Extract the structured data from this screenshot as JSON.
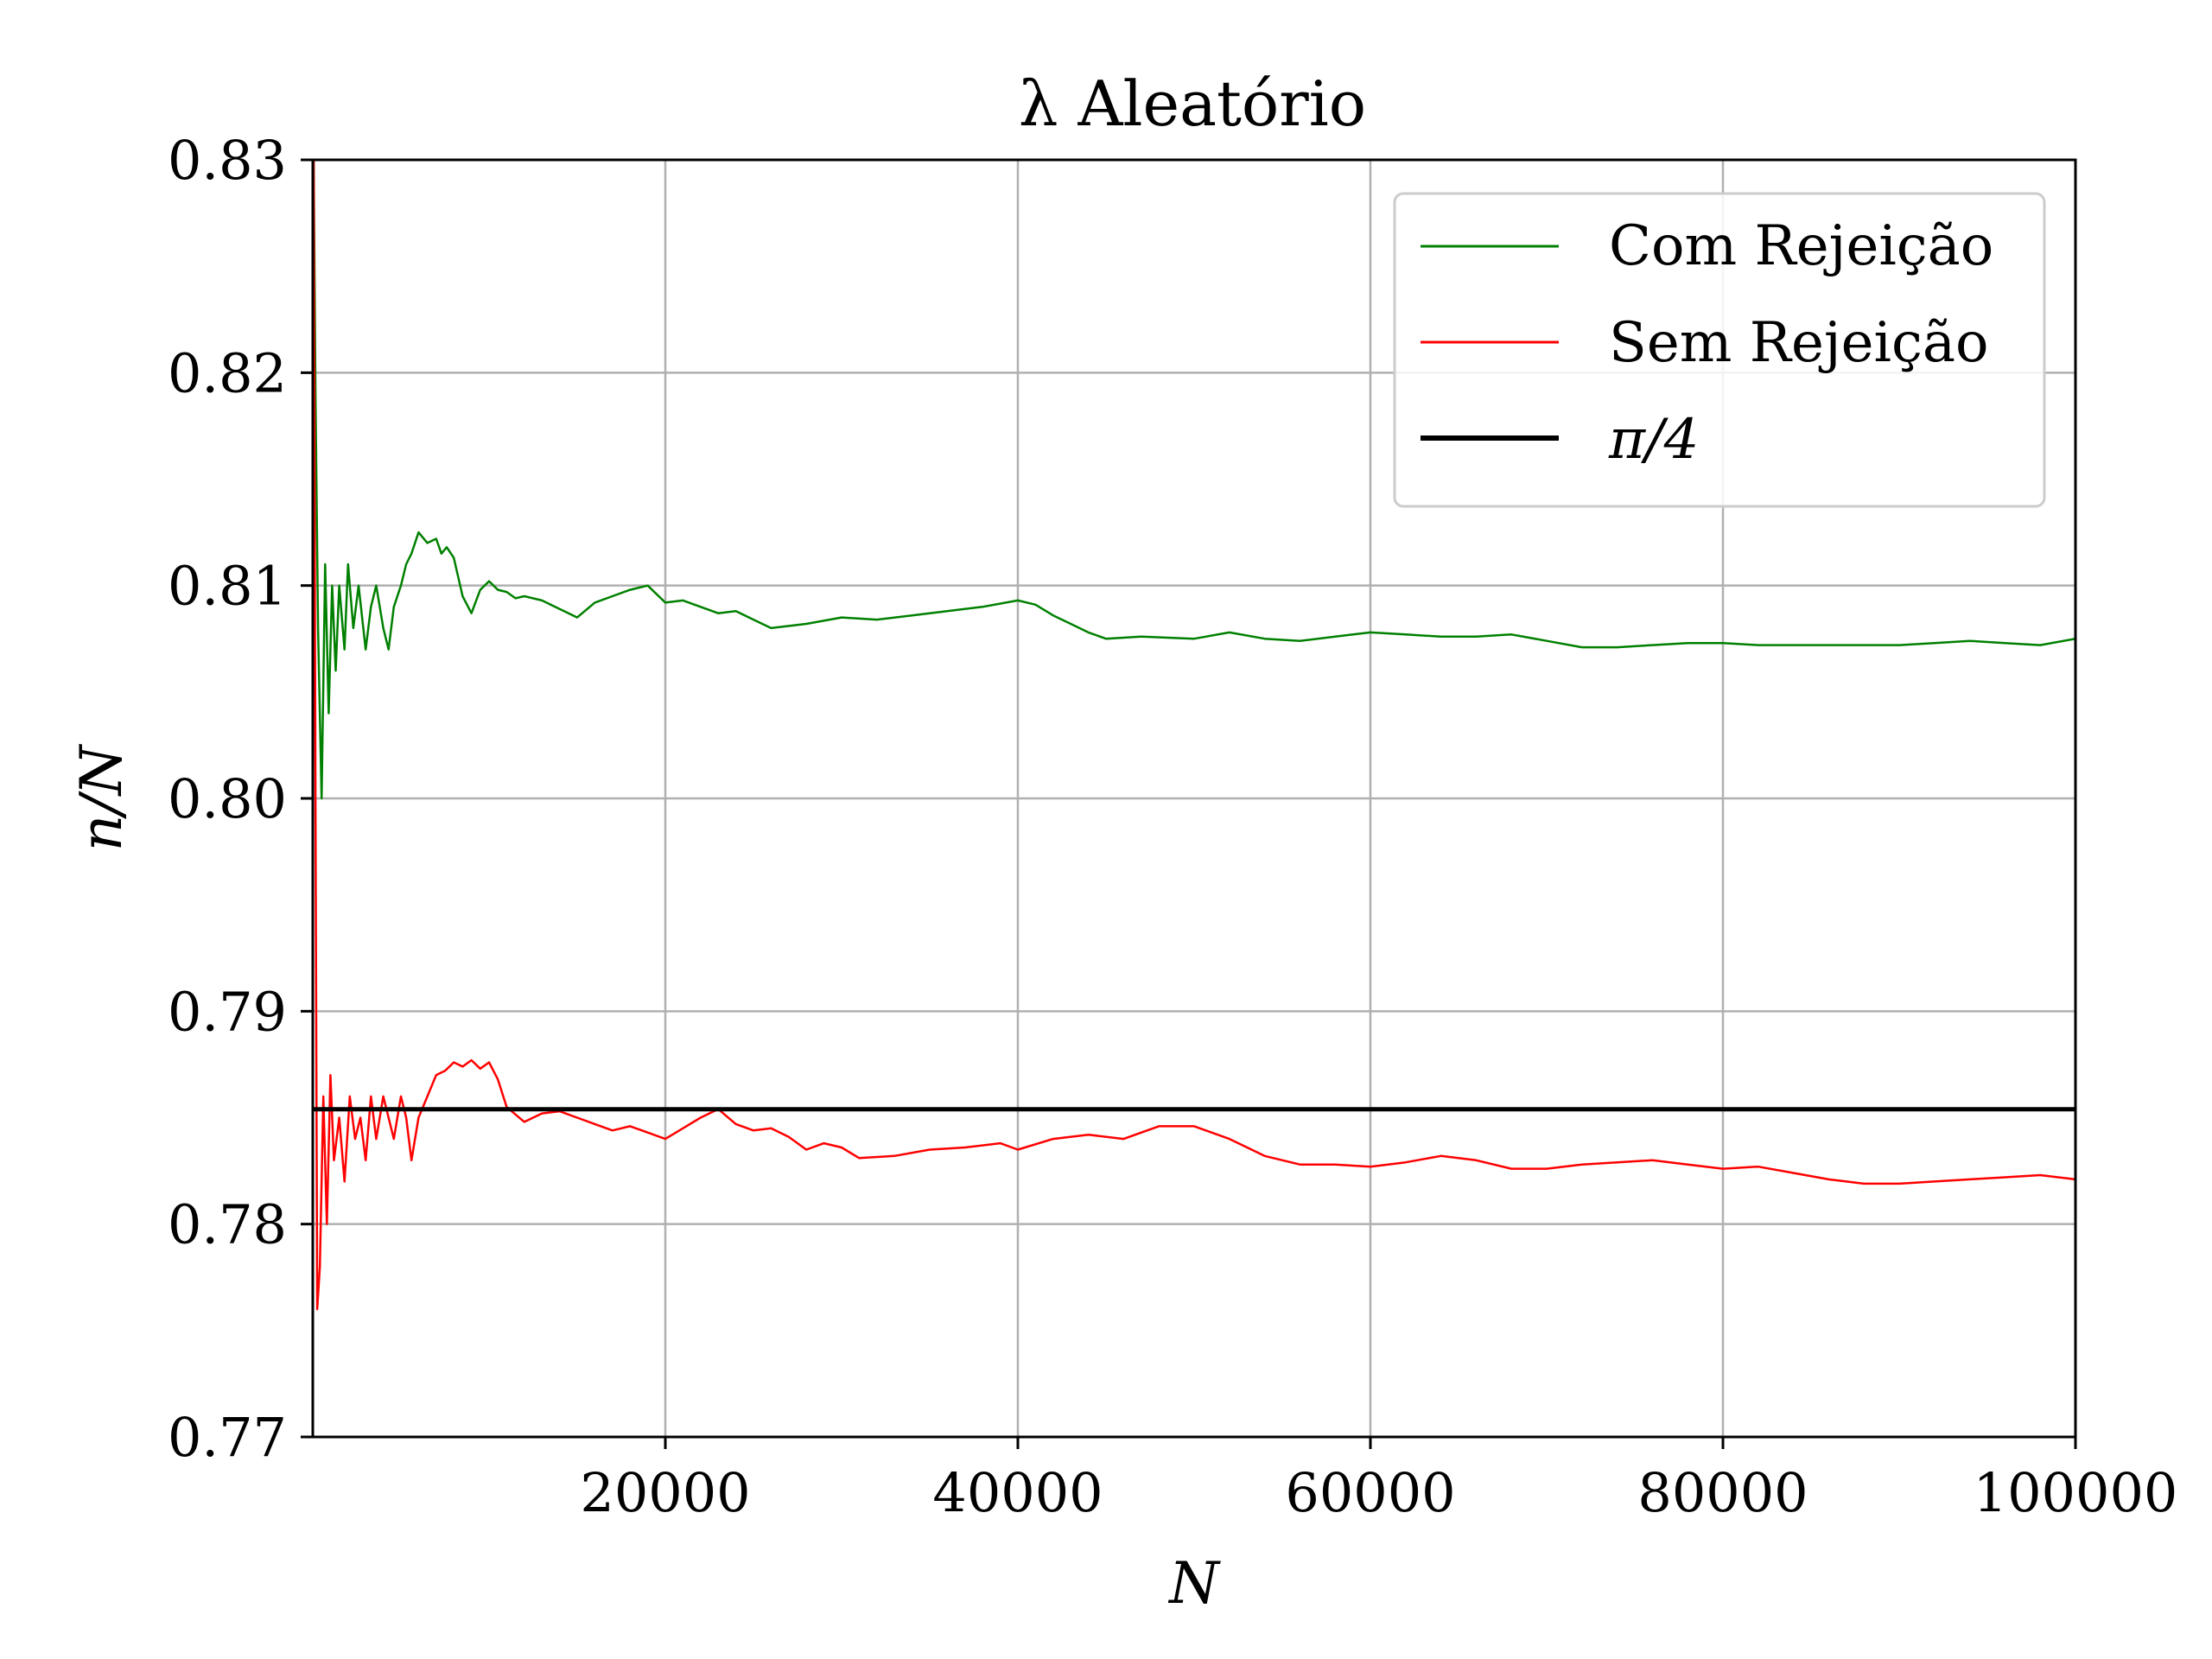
{
  "chart_data": {
    "type": "line",
    "title": "λ Aleatório",
    "xlabel": "N",
    "ylabel": "n/N",
    "xlim": [
      0,
      100000
    ],
    "ylim": [
      0.77,
      0.83
    ],
    "xticks": [
      20000,
      40000,
      60000,
      80000,
      100000
    ],
    "xtick_labels": [
      "20000",
      "40000",
      "60000",
      "80000",
      "100000"
    ],
    "yticks": [
      0.77,
      0.78,
      0.79,
      0.8,
      0.81,
      0.82,
      0.83
    ],
    "ytick_labels": [
      "0.77",
      "0.78",
      "0.79",
      "0.80",
      "0.81",
      "0.82",
      "0.83"
    ],
    "grid": true,
    "legend_position": "top-right",
    "series": [
      {
        "name": "Com Rejeição",
        "color": "#008000",
        "x": [
          50,
          150,
          300,
          500,
          700,
          900,
          1100,
          1300,
          1500,
          1800,
          2000,
          2300,
          2600,
          3000,
          3300,
          3600,
          4000,
          4300,
          4600,
          5000,
          5300,
          5600,
          6000,
          6500,
          7000,
          7300,
          7600,
          8000,
          8500,
          9000,
          9500,
          10000,
          10500,
          11000,
          11500,
          12000,
          13000,
          14000,
          15000,
          16000,
          17000,
          18000,
          19000,
          20000,
          21000,
          22000,
          23000,
          24000,
          25000,
          26000,
          28000,
          30000,
          32000,
          34000,
          36000,
          38000,
          40000,
          41000,
          42000,
          43000,
          44000,
          45000,
          47000,
          50000,
          52000,
          54000,
          56000,
          58000,
          60000,
          62000,
          64000,
          66000,
          68000,
          70000,
          72000,
          74000,
          76000,
          78000,
          80000,
          82000,
          84000,
          86000,
          88000,
          90000,
          92000,
          94000,
          96000,
          98000,
          100000
        ],
        "values": [
          0.83,
          0.819,
          0.808,
          0.8,
          0.811,
          0.804,
          0.81,
          0.806,
          0.81,
          0.807,
          0.811,
          0.808,
          0.81,
          0.807,
          0.809,
          0.81,
          0.808,
          0.807,
          0.809,
          0.81,
          0.811,
          0.8115,
          0.8125,
          0.812,
          0.8122,
          0.8115,
          0.8118,
          0.8113,
          0.8095,
          0.8087,
          0.8098,
          0.8102,
          0.8098,
          0.8097,
          0.8094,
          0.8095,
          0.8093,
          0.8089,
          0.8085,
          0.8092,
          0.8095,
          0.8098,
          0.81,
          0.8092,
          0.8093,
          0.809,
          0.8087,
          0.8088,
          0.8084,
          0.808,
          0.8082,
          0.8085,
          0.8084,
          0.8086,
          0.8088,
          0.809,
          0.8093,
          0.8091,
          0.8086,
          0.8082,
          0.8078,
          0.8075,
          0.8076,
          0.8075,
          0.8078,
          0.8075,
          0.8074,
          0.8076,
          0.8078,
          0.8077,
          0.8076,
          0.8076,
          0.8077,
          0.8074,
          0.8071,
          0.8071,
          0.8072,
          0.8073,
          0.8073,
          0.8072,
          0.8072,
          0.8072,
          0.8072,
          0.8072,
          0.8073,
          0.8074,
          0.8073,
          0.8072,
          0.8075
        ]
      },
      {
        "name": "Sem Rejeição",
        "color": "#ff0000",
        "x": [
          50,
          150,
          250,
          400,
          600,
          800,
          1000,
          1200,
          1500,
          1800,
          2100,
          2400,
          2700,
          3000,
          3300,
          3600,
          4000,
          4300,
          4600,
          5000,
          5300,
          5600,
          6000,
          6500,
          7000,
          7500,
          8000,
          8500,
          9000,
          9500,
          10000,
          10500,
          11000,
          12000,
          13000,
          14000,
          15000,
          16000,
          17000,
          18000,
          19000,
          20000,
          21000,
          22000,
          23000,
          24000,
          25000,
          26000,
          27000,
          28000,
          29000,
          30000,
          31000,
          33000,
          35000,
          37000,
          39000,
          40000,
          42000,
          44000,
          46000,
          48000,
          50000,
          52000,
          54000,
          56000,
          58000,
          60000,
          62000,
          64000,
          66000,
          68000,
          70000,
          72000,
          74000,
          76000,
          78000,
          80000,
          82000,
          84000,
          86000,
          88000,
          90000,
          92000,
          94000,
          96000,
          98000,
          100000
        ],
        "values": [
          0.83,
          0.8,
          0.776,
          0.778,
          0.786,
          0.78,
          0.787,
          0.783,
          0.785,
          0.782,
          0.786,
          0.784,
          0.785,
          0.783,
          0.786,
          0.784,
          0.786,
          0.785,
          0.784,
          0.786,
          0.785,
          0.783,
          0.785,
          0.786,
          0.787,
          0.7872,
          0.7876,
          0.7874,
          0.7877,
          0.7873,
          0.7876,
          0.7868,
          0.7855,
          0.7848,
          0.7852,
          0.7853,
          0.785,
          0.7847,
          0.7844,
          0.7846,
          0.7843,
          0.784,
          0.7845,
          0.785,
          0.7854,
          0.7847,
          0.7844,
          0.7845,
          0.7841,
          0.7835,
          0.7838,
          0.7836,
          0.7831,
          0.7832,
          0.7835,
          0.7836,
          0.7838,
          0.7835,
          0.784,
          0.7842,
          0.784,
          0.7846,
          0.7846,
          0.784,
          0.7832,
          0.7828,
          0.7828,
          0.7827,
          0.7829,
          0.7832,
          0.783,
          0.7826,
          0.7826,
          0.7828,
          0.7829,
          0.783,
          0.7828,
          0.7826,
          0.7827,
          0.7824,
          0.7821,
          0.7819,
          0.7819,
          0.782,
          0.7821,
          0.7822,
          0.7823,
          0.7821
        ]
      },
      {
        "name": "π/4",
        "color": "#000000",
        "x": [
          0,
          100000
        ],
        "values": [
          0.785398,
          0.785398
        ]
      }
    ]
  }
}
